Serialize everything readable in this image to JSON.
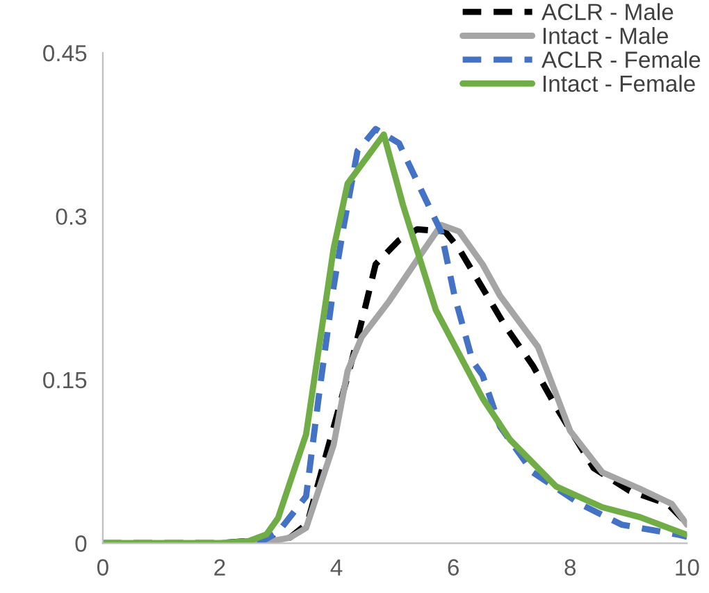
{
  "chart_data": {
    "type": "line",
    "xlim": [
      0,
      10
    ],
    "ylim": [
      0,
      0.45
    ],
    "xticks": [
      0,
      2,
      4,
      6,
      8,
      10
    ],
    "yticks": [
      0,
      0.15,
      0.3,
      0.45
    ],
    "grid": false,
    "legend": "top right",
    "marker": "none",
    "series": [
      {
        "name": "ACLR - Male",
        "color": "#000000",
        "line_style": "dashed",
        "x": [
          0,
          2,
          3.2,
          3.5,
          4.26,
          4.48,
          4.67,
          5.07,
          5.38,
          5.86,
          6.1,
          6.88,
          7.36,
          7.76,
          8.4,
          9.02,
          9.67,
          10
        ],
        "values": [
          0,
          0,
          0.005,
          0.018,
          0.167,
          0.214,
          0.256,
          0.278,
          0.288,
          0.286,
          0.27,
          0.2,
          0.163,
          0.125,
          0.069,
          0.048,
          0.036,
          0.018
        ]
      },
      {
        "name": "Intact - Male",
        "color": "#a5a5a5",
        "line_style": "solid",
        "x": [
          0,
          2,
          2.8,
          3.2,
          3.48,
          3.95,
          4.19,
          4.43,
          4.9,
          5.38,
          5.79,
          6.1,
          6.5,
          6.8,
          7.45,
          8.0,
          8.55,
          9.19,
          9.74,
          10
        ],
        "values": [
          0,
          0,
          0.001,
          0.005,
          0.014,
          0.09,
          0.158,
          0.189,
          0.222,
          0.26,
          0.292,
          0.286,
          0.256,
          0.227,
          0.18,
          0.103,
          0.065,
          0.05,
          0.036,
          0.017
        ]
      },
      {
        "name": "ACLR - Female",
        "color": "#4472c4",
        "line_style": "dashed",
        "x": [
          0,
          2,
          2.7,
          3.0,
          3.48,
          3.71,
          3.95,
          4.12,
          4.36,
          4.67,
          5.07,
          5.45,
          5.79,
          6.02,
          6.33,
          6.5,
          6.8,
          7.36,
          8.17,
          8.88,
          9.83,
          10
        ],
        "values": [
          0,
          0,
          0.001,
          0.01,
          0.043,
          0.14,
          0.235,
          0.29,
          0.36,
          0.38,
          0.367,
          0.324,
          0.286,
          0.227,
          0.167,
          0.154,
          0.107,
          0.065,
          0.036,
          0.017,
          0.008,
          0.006
        ]
      },
      {
        "name": "Intact - Female",
        "color": "#70ad47",
        "line_style": "solid",
        "x": [
          0,
          2,
          2.5,
          2.8,
          3.0,
          3.48,
          3.95,
          4.19,
          4.81,
          5.14,
          5.7,
          6.5,
          6.97,
          7.76,
          8.55,
          9.19,
          9.98
        ],
        "values": [
          0,
          0,
          0.002,
          0.008,
          0.023,
          0.1,
          0.27,
          0.33,
          0.375,
          0.31,
          0.214,
          0.133,
          0.095,
          0.052,
          0.033,
          0.024,
          0.008
        ]
      }
    ]
  }
}
